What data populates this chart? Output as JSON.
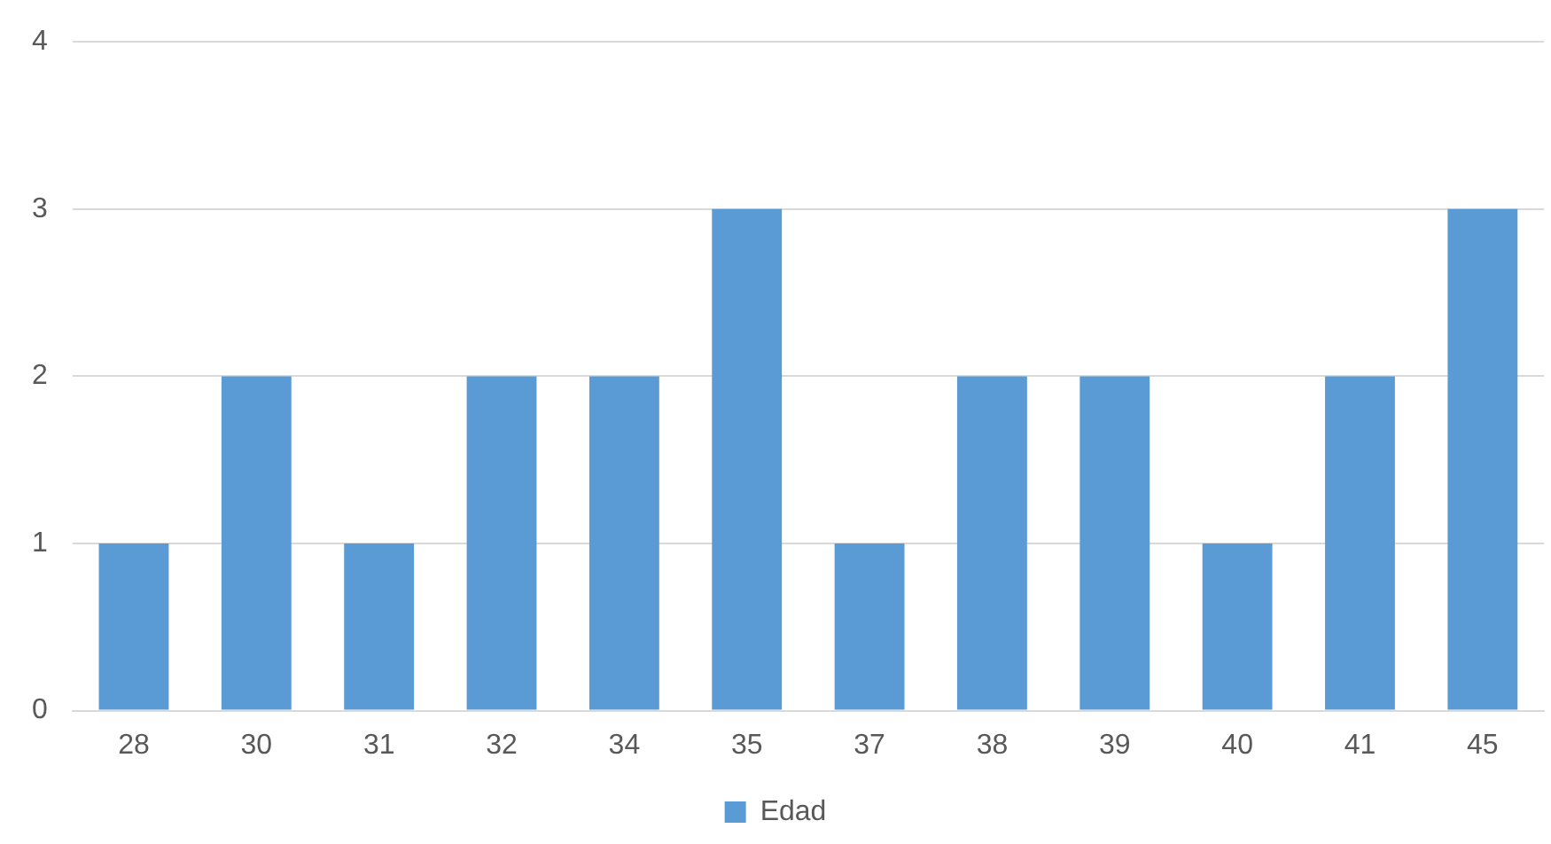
{
  "chart_data": {
    "type": "bar",
    "categories": [
      "28",
      "30",
      "31",
      "32",
      "34",
      "35",
      "37",
      "38",
      "39",
      "40",
      "41",
      "45"
    ],
    "series": [
      {
        "name": "Edad",
        "color": "#5b9bd5",
        "values": [
          1,
          2,
          1,
          2,
          2,
          3,
          1,
          2,
          2,
          1,
          2,
          3
        ]
      }
    ],
    "ylim": [
      0,
      4
    ],
    "yticks": [
      0,
      1,
      2,
      3,
      4
    ],
    "grid": "y",
    "legend": "bottom"
  }
}
